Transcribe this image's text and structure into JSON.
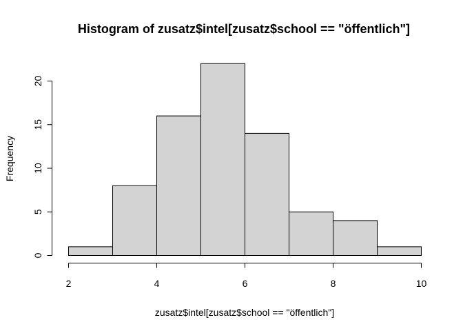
{
  "chart_data": {
    "type": "bar",
    "subtype": "histogram",
    "title": "Histogram of zusatz$intel[zusatz$school == \"öffentlich\"]",
    "xlabel": "zusatz$intel[zusatz$school == \"öffentlich\"]",
    "ylabel": "Frequency",
    "bins": [
      {
        "start": 2,
        "end": 3,
        "count": 1
      },
      {
        "start": 3,
        "end": 4,
        "count": 8
      },
      {
        "start": 4,
        "end": 5,
        "count": 16
      },
      {
        "start": 5,
        "end": 6,
        "count": 22
      },
      {
        "start": 6,
        "end": 7,
        "count": 14
      },
      {
        "start": 7,
        "end": 8,
        "count": 5
      },
      {
        "start": 8,
        "end": 9,
        "count": 4
      },
      {
        "start": 9,
        "end": 10,
        "count": 1
      }
    ],
    "xlim": [
      2,
      10
    ],
    "ylim": [
      0,
      22
    ],
    "xticks": [
      "2",
      "4",
      "6",
      "8",
      "10"
    ],
    "yticks": [
      "0",
      "5",
      "10",
      "15",
      "20"
    ],
    "bar_fill": "#d3d3d3",
    "bar_stroke": "#000000",
    "grid": false,
    "legend": "none"
  }
}
